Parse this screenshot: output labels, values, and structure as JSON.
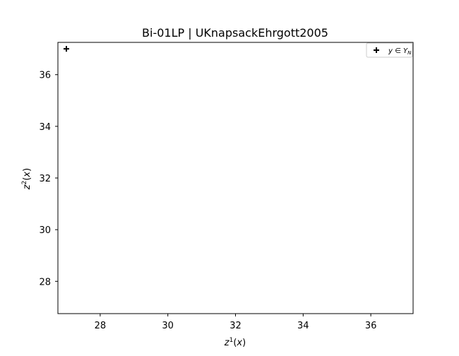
{
  "chart_data": {
    "type": "scatter",
    "title": "Bi-01LP | UKnapsackEhrgott2005",
    "xlabel": "z^1(x)",
    "ylabel": "z^2(x)",
    "xlim": [
      26.75,
      37.25
    ],
    "ylim": [
      26.75,
      37.25
    ],
    "xticks": [
      "28",
      "30",
      "32",
      "34",
      "36"
    ],
    "yticks": [
      "28",
      "30",
      "32",
      "34",
      "36"
    ],
    "series": [
      {
        "name": "y ∈ Y_N",
        "marker": "plus",
        "color": "#000000",
        "points": [
          [
            27,
            37
          ]
        ]
      }
    ],
    "legend": {
      "position": "top-right",
      "label": "y ∈ Y_N"
    },
    "grid": false
  }
}
